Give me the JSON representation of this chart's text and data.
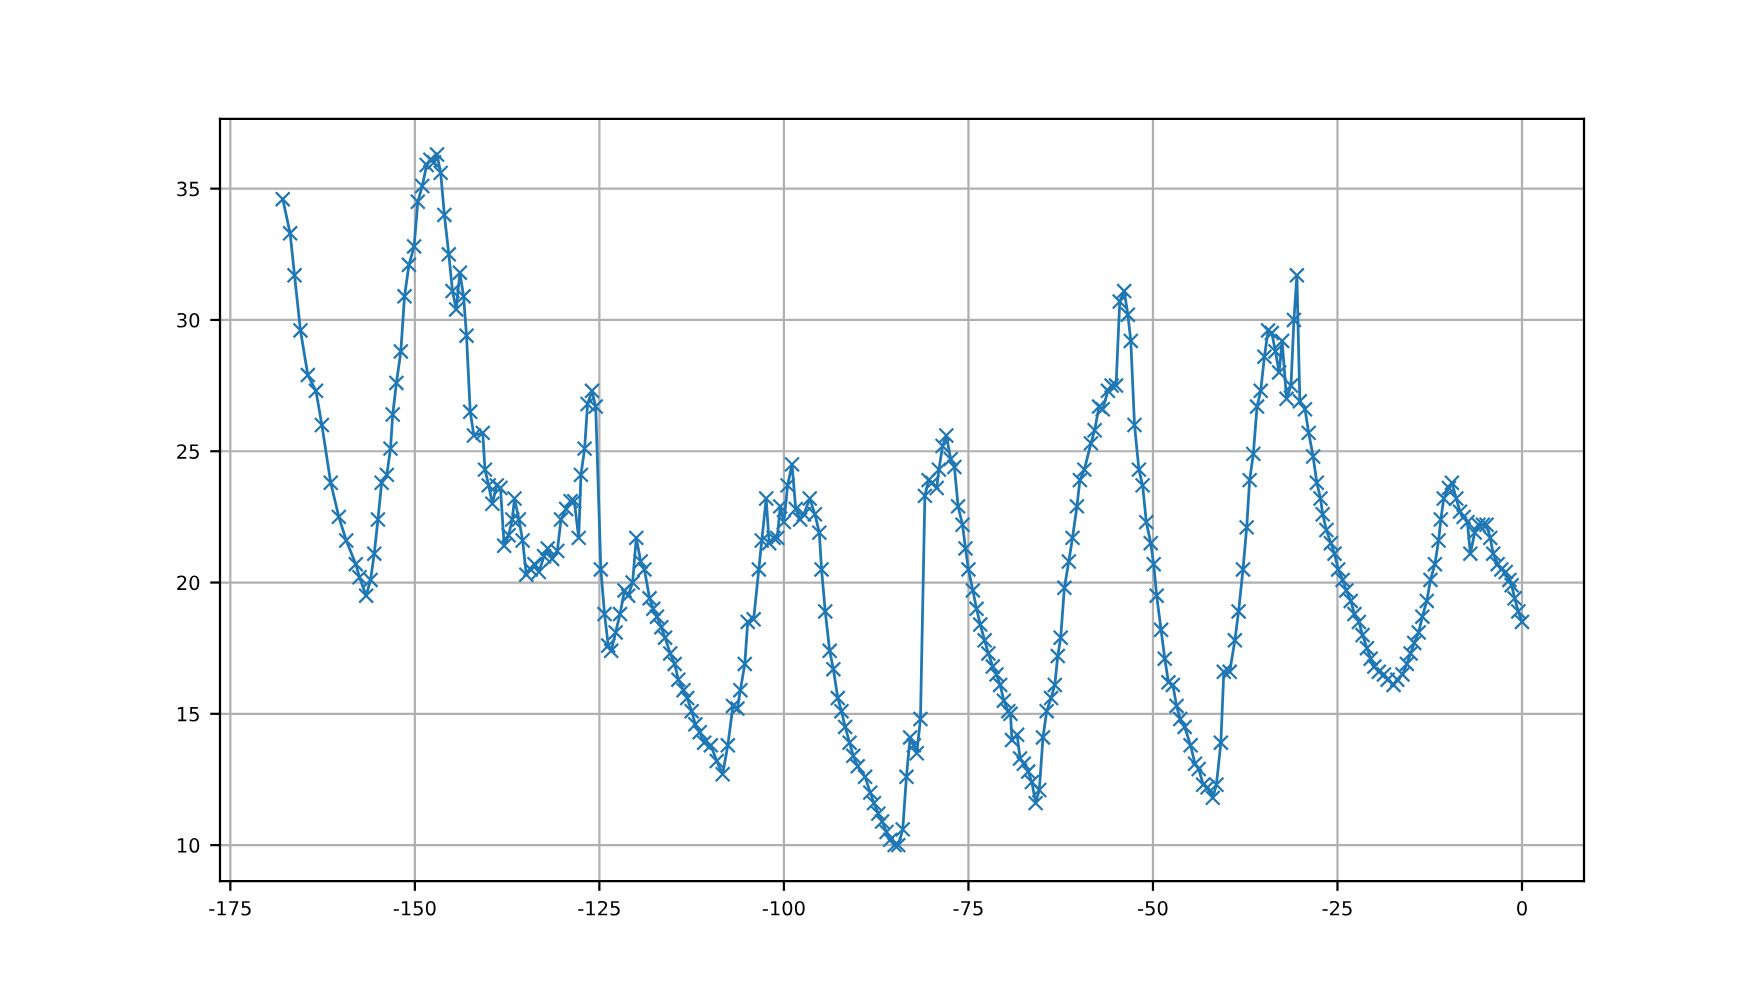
{
  "chart_data": {
    "type": "line",
    "marker": "cross",
    "line_style": "solid",
    "grid": true,
    "xlim": [
      -176.4,
      8.4
    ],
    "ylim": [
      8.63,
      37.66
    ],
    "xticks": [
      -175,
      -150,
      -125,
      -100,
      -75,
      -50,
      -25,
      0
    ],
    "yticks": [
      10,
      15,
      20,
      25,
      30,
      35
    ],
    "series": [
      {
        "color": "#1f77b4",
        "x": [
          -167.9,
          -166.9,
          -166.3,
          -165.5,
          -164.5,
          -163.4,
          -162.6,
          -161.4,
          -160.3,
          -159.3,
          -158.0,
          -157.5,
          -156.6,
          -156.0,
          -155.5,
          -155.0,
          -154.5,
          -153.8,
          -153.3,
          -153.0,
          -152.5,
          -151.9,
          -151.4,
          -150.8,
          -150.1,
          -149.6,
          -149.0,
          -148.4,
          -147.9,
          -147.4,
          -147.0,
          -146.5,
          -146.0,
          -145.4,
          -144.9,
          -144.4,
          -143.9,
          -143.4,
          -143.0,
          -142.5,
          -142.0,
          -140.8,
          -140.5,
          -140.0,
          -139.5,
          -138.9,
          -138.4,
          -137.9,
          -137.3,
          -136.8,
          -136.5,
          -135.9,
          -135.4,
          -134.9,
          -134.3,
          -133.8,
          -133.2,
          -132.5,
          -132.0,
          -131.4,
          -130.7,
          -130.2,
          -129.5,
          -128.9,
          -128.4,
          -127.8,
          -127.5,
          -127.0,
          -126.6,
          -126.0,
          -125.5,
          -124.8,
          -124.3,
          -123.8,
          -123.4,
          -122.8,
          -122.2,
          -121.6,
          -121.1,
          -120.5,
          -120.0,
          -119.4,
          -118.9,
          -118.2,
          -117.7,
          -117.2,
          -116.6,
          -116.1,
          -115.4,
          -114.8,
          -114.3,
          -113.6,
          -113.1,
          -112.5,
          -112.0,
          -111.4,
          -110.8,
          -109.9,
          -109.1,
          -108.3,
          -107.6,
          -106.9,
          -106.3,
          -105.9,
          -105.3,
          -104.9,
          -104.1,
          -103.4,
          -103.0,
          -102.4,
          -102.0,
          -101.4,
          -100.9,
          -100.5,
          -100.0,
          -99.5,
          -98.9,
          -98.4,
          -97.8,
          -97.3,
          -96.5,
          -95.8,
          -95.2,
          -94.9,
          -94.4,
          -93.8,
          -93.3,
          -92.7,
          -92.2,
          -91.7,
          -91.1,
          -90.6,
          -90.0,
          -89.0,
          -88.3,
          -87.8,
          -87.2,
          -86.7,
          -86.1,
          -85.6,
          -85.0,
          -84.5,
          -83.9,
          -83.4,
          -82.9,
          -82.4,
          -82.0,
          -81.5,
          -80.9,
          -80.4,
          -79.9,
          -79.3,
          -79.0,
          -78.5,
          -78.0,
          -77.4,
          -76.9,
          -76.4,
          -75.8,
          -75.4,
          -75.0,
          -74.4,
          -73.9,
          -73.4,
          -72.8,
          -72.3,
          -71.7,
          -71.2,
          -70.7,
          -70.2,
          -69.6,
          -69.3,
          -69.1,
          -68.4,
          -68.0,
          -67.5,
          -66.9,
          -66.4,
          -65.9,
          -65.4,
          -64.9,
          -64.4,
          -63.8,
          -63.3,
          -62.9,
          -62.5,
          -62.0,
          -61.4,
          -60.9,
          -60.3,
          -59.9,
          -59.3,
          -58.4,
          -57.9,
          -57.3,
          -56.8,
          -56.1,
          -55.6,
          -55.0,
          -54.5,
          -53.9,
          -53.4,
          -53.0,
          -52.5,
          -51.9,
          -51.4,
          -50.9,
          -50.3,
          -49.9,
          -49.5,
          -48.9,
          -48.4,
          -47.9,
          -47.3,
          -46.8,
          -46.3,
          -45.7,
          -44.9,
          -44.3,
          -43.8,
          -43.2,
          -42.6,
          -41.9,
          -41.4,
          -40.8,
          -40.4,
          -39.6,
          -38.9,
          -38.4,
          -37.8,
          -37.3,
          -36.9,
          -36.4,
          -35.9,
          -35.4,
          -34.9,
          -34.4,
          -33.9,
          -33.4,
          -32.9,
          -32.5,
          -31.9,
          -31.3,
          -30.9,
          -30.5,
          -30.1,
          -29.4,
          -28.9,
          -28.3,
          -27.8,
          -27.3,
          -27.0,
          -26.5,
          -25.9,
          -25.4,
          -24.9,
          -24.3,
          -23.8,
          -23.2,
          -22.7,
          -22.1,
          -21.6,
          -21.0,
          -20.5,
          -20.0,
          -19.4,
          -18.7,
          -18.2,
          -17.4,
          -16.9,
          -16.2,
          -15.6,
          -15.1,
          -14.6,
          -14.0,
          -13.5,
          -12.9,
          -12.4,
          -11.8,
          -11.3,
          -11.0,
          -10.6,
          -9.9,
          -9.5,
          -8.9,
          -8.4,
          -7.9,
          -7.4,
          -7.0,
          -6.4,
          -5.9,
          -5.3,
          -4.8,
          -4.3,
          -3.9,
          -3.3,
          -2.8,
          -2.2,
          -1.7,
          -1.4,
          -1.0,
          -0.5,
          0
        ],
        "values": [
          34.6,
          33.3,
          31.7,
          29.6,
          27.9,
          27.3,
          26.0,
          23.8,
          22.5,
          21.6,
          20.7,
          20.2,
          19.5,
          20.1,
          21.1,
          22.4,
          23.8,
          24.1,
          25.1,
          26.4,
          27.6,
          28.8,
          30.9,
          32.1,
          32.8,
          34.5,
          35.1,
          35.9,
          36.1,
          36.0,
          36.3,
          35.6,
          34.0,
          32.5,
          31.1,
          30.4,
          31.8,
          30.9,
          29.4,
          26.5,
          25.6,
          25.7,
          24.3,
          23.7,
          23.0,
          23.7,
          23.6,
          21.4,
          21.8,
          22.4,
          23.2,
          22.4,
          21.6,
          20.3,
          20.5,
          20.7,
          20.4,
          21.0,
          21.3,
          20.9,
          21.2,
          22.4,
          22.8,
          23.1,
          23.1,
          21.7,
          24.1,
          25.1,
          26.8,
          27.3,
          26.7,
          20.5,
          18.8,
          17.6,
          17.4,
          18.1,
          18.8,
          19.7,
          19.5,
          20.0,
          21.7,
          20.8,
          20.5,
          19.4,
          19.0,
          18.7,
          18.3,
          17.9,
          17.3,
          16.9,
          16.3,
          15.9,
          15.6,
          15.1,
          14.6,
          14.3,
          13.9,
          13.8,
          13.2,
          12.7,
          13.8,
          15.3,
          15.2,
          15.9,
          16.9,
          18.5,
          18.6,
          20.5,
          21.6,
          23.2,
          21.5,
          21.7,
          21.7,
          22.9,
          22.3,
          23.7,
          24.5,
          22.8,
          22.4,
          22.6,
          23.2,
          22.6,
          21.9,
          20.5,
          18.9,
          17.4,
          16.7,
          15.6,
          15.1,
          14.5,
          13.9,
          13.4,
          13.0,
          12.6,
          12.0,
          11.6,
          11.2,
          10.9,
          10.5,
          10.2,
          10.0,
          10.0,
          10.6,
          12.6,
          14.1,
          13.8,
          13.5,
          14.8,
          23.3,
          23.9,
          23.8,
          23.6,
          24.3,
          25.2,
          25.6,
          24.7,
          24.4,
          22.9,
          22.2,
          21.3,
          20.5,
          19.7,
          19.0,
          18.4,
          17.8,
          17.3,
          16.8,
          16.5,
          16.1,
          15.5,
          15.1,
          15.0,
          14.0,
          14.2,
          13.3,
          13.1,
          12.8,
          12.4,
          11.6,
          12.1,
          14.1,
          15.1,
          15.6,
          16.1,
          17.2,
          17.9,
          19.8,
          20.8,
          21.7,
          22.9,
          23.9,
          24.3,
          25.3,
          25.8,
          26.7,
          26.6,
          27.3,
          27.5,
          27.5,
          30.7,
          31.1,
          30.2,
          29.2,
          26.0,
          24.3,
          23.7,
          22.3,
          21.5,
          20.7,
          19.5,
          18.2,
          17.1,
          16.2,
          16.1,
          15.3,
          14.8,
          14.5,
          13.8,
          13.1,
          12.9,
          12.3,
          12.2,
          11.8,
          12.3,
          13.9,
          16.6,
          16.6,
          17.8,
          18.9,
          20.5,
          22.1,
          23.9,
          24.9,
          26.7,
          27.3,
          28.6,
          29.6,
          29.5,
          28.8,
          28.0,
          29.2,
          27.0,
          27.5,
          30.0,
          31.7,
          26.9,
          26.6,
          25.7,
          24.8,
          23.8,
          23.2,
          22.6,
          22.0,
          21.5,
          21.1,
          20.5,
          20.1,
          19.7,
          19.3,
          18.8,
          18.5,
          18.0,
          17.5,
          17.1,
          16.8,
          16.6,
          16.5,
          16.3,
          16.1,
          16.3,
          16.5,
          16.9,
          17.3,
          17.7,
          18.1,
          18.7,
          19.3,
          20.1,
          20.7,
          21.6,
          22.4,
          23.2,
          23.6,
          23.8,
          23.2,
          22.7,
          22.5,
          22.3,
          21.1,
          21.9,
          22.2,
          22.2,
          22.2,
          21.7,
          21.1,
          20.7,
          20.5,
          20.4,
          20.1,
          19.9,
          19.4,
          18.9,
          18.5
        ]
      }
    ]
  }
}
